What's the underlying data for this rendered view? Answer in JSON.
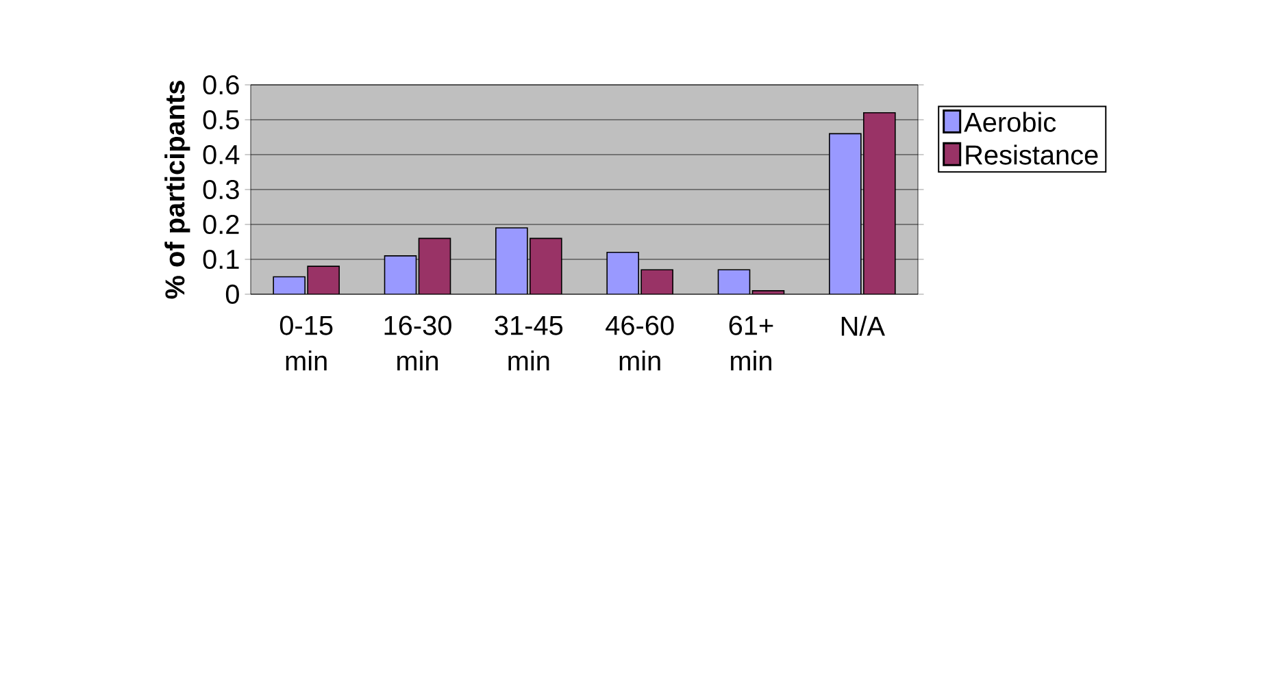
{
  "chart_data": {
    "type": "bar",
    "ylabel": "% of participants",
    "categories": [
      "0-15 min",
      "16-30 min",
      "31-45 min",
      "46-60 min",
      "61+ min",
      "N/A"
    ],
    "series": [
      {
        "name": "Aerobic",
        "color": "#9999ff",
        "values": [
          0.05,
          0.11,
          0.19,
          0.12,
          0.07,
          0.46
        ]
      },
      {
        "name": "Resistance",
        "color": "#993366",
        "values": [
          0.08,
          0.16,
          0.16,
          0.07,
          0.01,
          0.52
        ]
      }
    ],
    "ylim": [
      0,
      0.6
    ],
    "yticks": [
      0,
      0.1,
      0.2,
      0.3,
      0.4,
      0.5,
      0.6
    ],
    "grid": "y",
    "legend": "right"
  }
}
